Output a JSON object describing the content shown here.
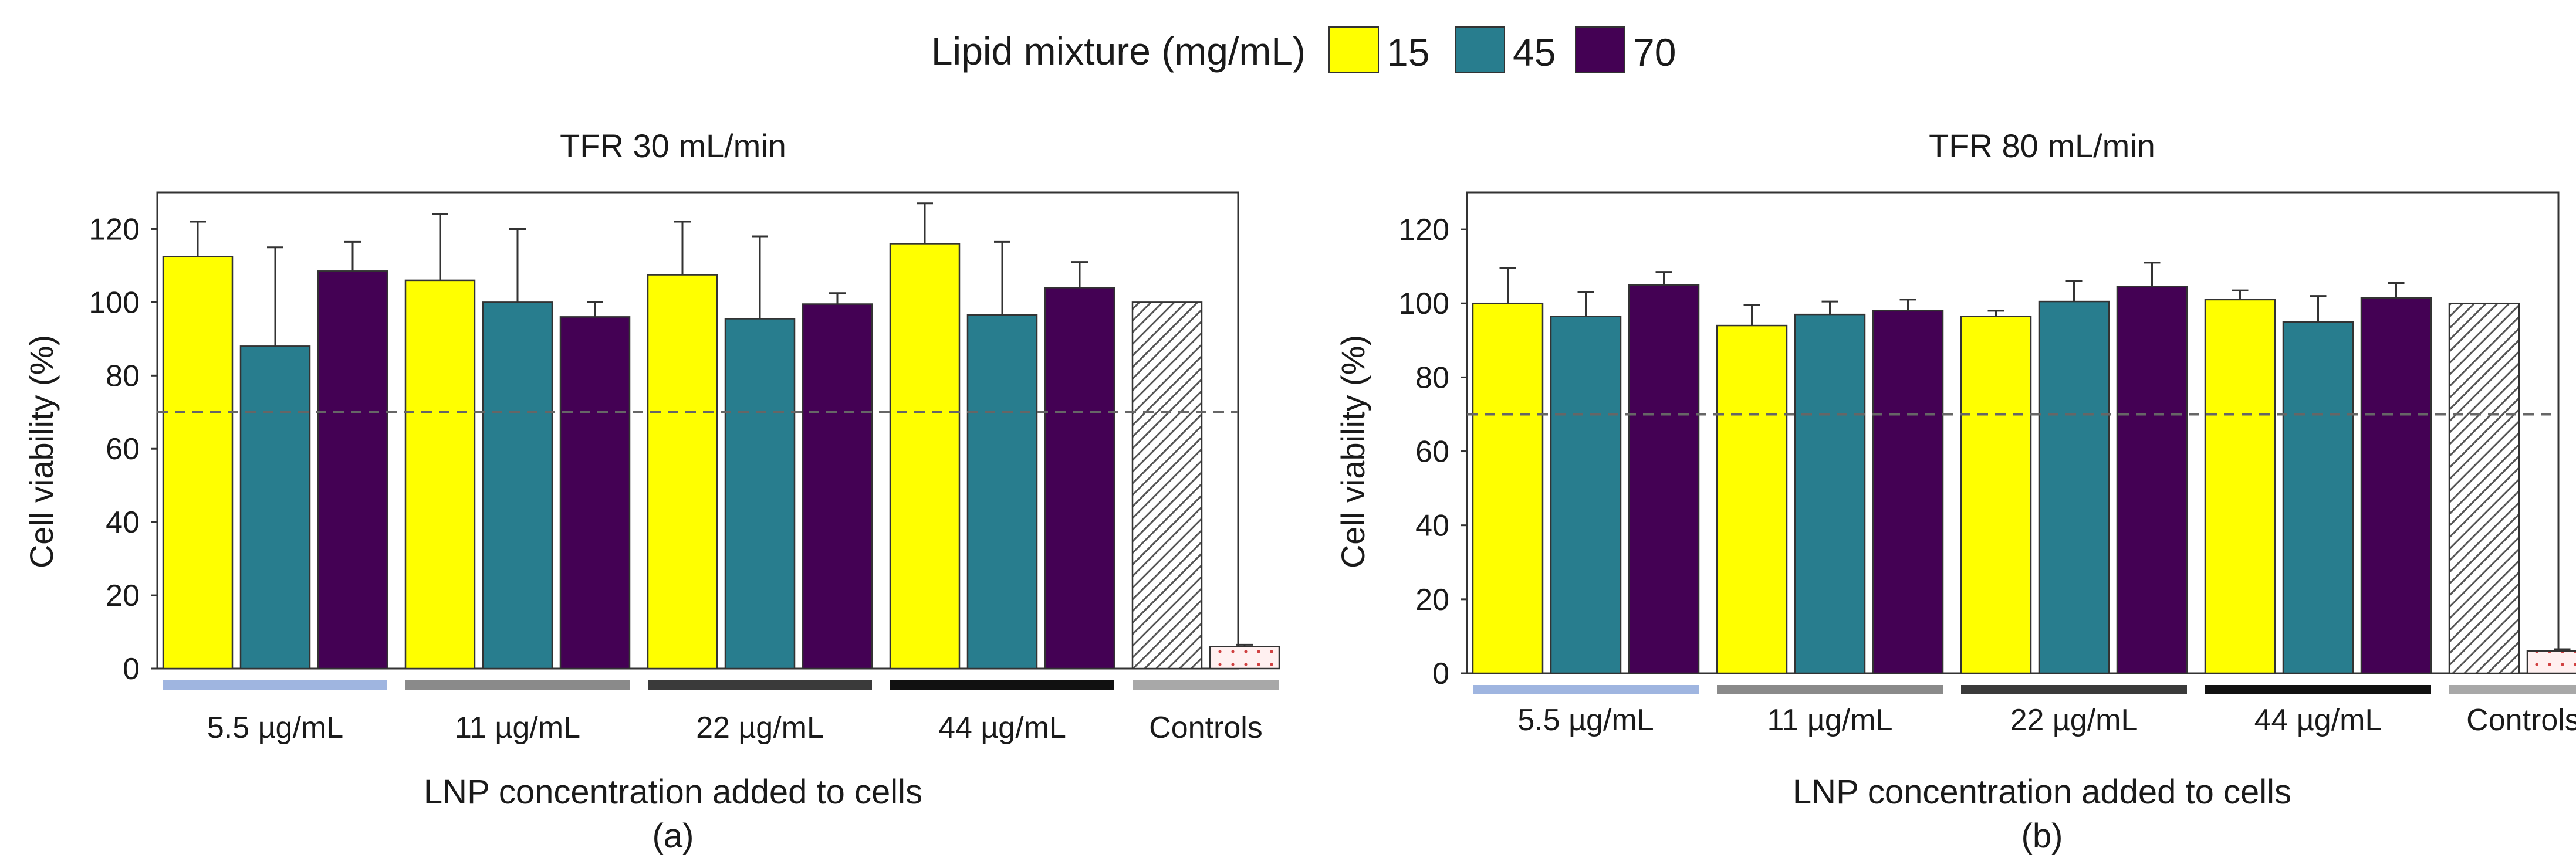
{
  "legend": {
    "title": "Lipid mixture (mg/mL)",
    "items": [
      {
        "label": "15",
        "color": "#ffff00"
      },
      {
        "label": "45",
        "color": "#287d8e"
      },
      {
        "label": "70",
        "color": "#440154"
      }
    ]
  },
  "colors": {
    "axis": "#333333",
    "threshold_line": "#666666",
    "group_bars": [
      "#9fb5e0",
      "#8a8a8a",
      "#3a3a3a",
      "#111111",
      "#a8a8a8"
    ]
  },
  "chart_data": [
    {
      "type": "bar",
      "title": "TFR 30 mL/min",
      "xlabel": "LNP concentration added to cells",
      "ylabel": "Cell viability (%)",
      "caption": "(a)",
      "ylim": [
        0,
        130
      ],
      "yticks": [
        0,
        20,
        40,
        60,
        80,
        100,
        120
      ],
      "threshold": 70,
      "grid": false,
      "legend_position": "top-center",
      "categories": [
        "5.5 µg/mL",
        "11 µg/mL",
        "22 µg/mL",
        "44 µg/mL"
      ],
      "series": [
        {
          "name": "15",
          "values": [
            112.5,
            106,
            107.5,
            116
          ],
          "errors": [
            9.5,
            18,
            14.5,
            11
          ]
        },
        {
          "name": "45",
          "values": [
            88,
            100,
            95.5,
            96.5
          ],
          "errors": [
            27,
            20,
            22.5,
            20
          ]
        },
        {
          "name": "70",
          "values": [
            108.5,
            96,
            99.5,
            104
          ],
          "errors": [
            8,
            4,
            3,
            7
          ]
        }
      ],
      "controls": {
        "label": "Controls",
        "values": [
          100,
          6
        ],
        "errors": [
          0,
          0.5
        ]
      }
    },
    {
      "type": "bar",
      "title": "TFR 80 mL/min",
      "xlabel": "LNP concentration added to cells",
      "ylabel": "Cell viability (%)",
      "caption": "(b)",
      "ylim": [
        0,
        130
      ],
      "yticks": [
        0,
        20,
        40,
        60,
        80,
        100,
        120
      ],
      "threshold": 70,
      "grid": false,
      "legend_position": "top-center",
      "categories": [
        "5.5 µg/mL",
        "11 µg/mL",
        "22 µg/mL",
        "44 µg/mL"
      ],
      "series": [
        {
          "name": "15",
          "values": [
            100,
            94,
            96.5,
            101
          ],
          "errors": [
            9.5,
            5.5,
            1.5,
            2.5
          ]
        },
        {
          "name": "45",
          "values": [
            96.5,
            97,
            100.5,
            95
          ],
          "errors": [
            6.5,
            3.5,
            5.5,
            7
          ]
        },
        {
          "name": "70",
          "values": [
            105,
            98,
            104.5,
            101.5
          ],
          "errors": [
            3.5,
            3,
            6.5,
            4
          ]
        }
      ],
      "controls": {
        "label": "Controls",
        "values": [
          100,
          6
        ],
        "errors": [
          0,
          0.5
        ]
      }
    }
  ]
}
